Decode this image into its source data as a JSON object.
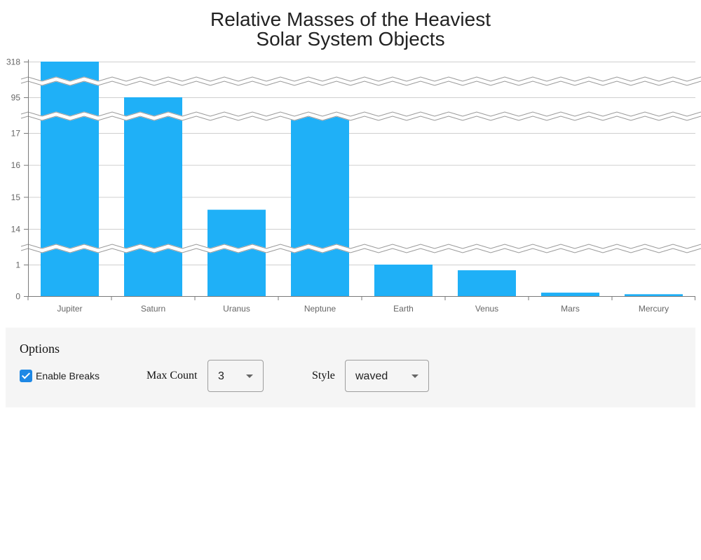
{
  "chart_data": {
    "type": "bar",
    "title": [
      "Relative Masses of the Heaviest",
      "Solar System Objects"
    ],
    "categories": [
      "Jupiter",
      "Saturn",
      "Uranus",
      "Neptune",
      "Earth",
      "Venus",
      "Mars",
      "Mercury"
    ],
    "values": [
      318,
      95,
      14.6,
      17.2,
      1,
      0.82,
      0.11,
      0.06
    ],
    "y_ticks": [
      0,
      1,
      14,
      15,
      16,
      17,
      95,
      318
    ],
    "axis_breaks": [
      [
        1,
        14
      ],
      [
        17,
        95
      ],
      [
        95,
        318
      ]
    ],
    "bar_color": "#1fb0f7",
    "grid": true
  },
  "options": {
    "title": "Options",
    "enable_breaks_label": "Enable Breaks",
    "enable_breaks": true,
    "max_count_label": "Max Count",
    "max_count_value": "3",
    "style_label": "Style",
    "style_value": "waved"
  }
}
